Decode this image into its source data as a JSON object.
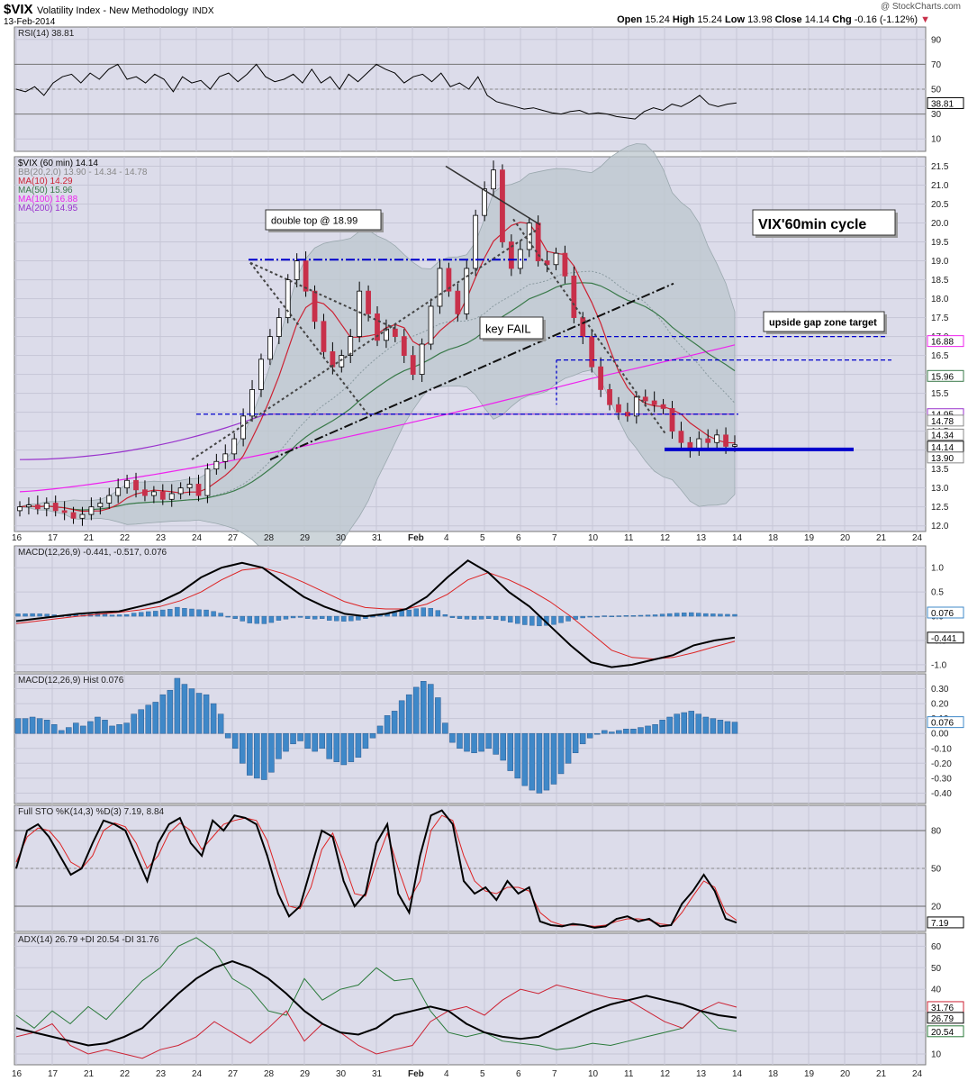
{
  "header": {
    "symbol": "$VIX",
    "name": "Volatility Index - New Methodology",
    "exchange": "INDX",
    "date": "13-Feb-2014",
    "watermark": "@ StockCharts.com",
    "ohlc": {
      "open": "15.24",
      "high": "15.24",
      "low": "13.98",
      "close": "14.14",
      "chg": "-0.16 (-1.12%)"
    }
  },
  "x_axis_labels": [
    "16",
    "17",
    "21",
    "22",
    "23",
    "24",
    "27",
    "28",
    "29",
    "30",
    "31",
    "Feb",
    "4",
    "5",
    "6",
    "7",
    "10",
    "11",
    "12",
    "13",
    "14",
    "18",
    "19",
    "20",
    "21",
    "24"
  ],
  "chart_data": [
    {
      "type": "line",
      "panel": "rsi",
      "legend": "RSI(14) 38.81",
      "yticks": [
        10,
        30,
        50,
        70,
        90
      ],
      "ylim": [
        0,
        100
      ],
      "reference_lines": [
        30,
        50,
        70
      ],
      "last_value": "38.81",
      "values": [
        50,
        48,
        52,
        45,
        55,
        60,
        62,
        55,
        63,
        58,
        66,
        70,
        58,
        60,
        55,
        62,
        58,
        48,
        60,
        55,
        57,
        50,
        60,
        63,
        56,
        62,
        70,
        60,
        56,
        58,
        62,
        55,
        66,
        55,
        60,
        50,
        62,
        56,
        63,
        70,
        66,
        63,
        55,
        60,
        62,
        56,
        63,
        52,
        55,
        50,
        60,
        45,
        40,
        38,
        36,
        34,
        35,
        33,
        31,
        30,
        32,
        33,
        30,
        31,
        30,
        28,
        27,
        26,
        32,
        35,
        33,
        38,
        36,
        40,
        45,
        38,
        36,
        38,
        39
      ]
    },
    {
      "type": "candlestick",
      "panel": "price",
      "legend": [
        "$VIX (60 min) 14.14",
        "BB(20,2.0) 13.90 - 14.34 - 14.78",
        "MA(10) 14.29",
        "MA(50) 15.96",
        "MA(100) 16.88",
        "MA(200) 14.95"
      ],
      "legend_colors": [
        "#000000",
        "#888888",
        "#cc2233",
        "#3a7a4a",
        "#ee22ee",
        "#9933cc"
      ],
      "yticks": [
        12.0,
        12.5,
        13.0,
        13.5,
        14.0,
        14.5,
        15.0,
        15.5,
        16.0,
        16.5,
        17.0,
        17.5,
        18.0,
        18.5,
        19.0,
        19.5,
        20.0,
        20.5,
        21.0,
        21.5
      ],
      "ylim": [
        11.85,
        21.75
      ],
      "y_markers": [
        {
          "value": 16.88,
          "label": "16.88",
          "color": "#ee22ee"
        },
        {
          "value": 15.96,
          "label": "15.96",
          "color": "#3a7a4a"
        },
        {
          "value": 14.95,
          "label": "14.95",
          "color": "#9933cc"
        },
        {
          "value": 14.78,
          "label": "14.78",
          "color": "#888888"
        },
        {
          "value": 14.34,
          "label": "14.34",
          "color": "#888888"
        },
        {
          "value": 14.14,
          "label": "14.14",
          "color": "#000000"
        },
        {
          "value": 13.9,
          "label": "13.90",
          "color": "#888888"
        }
      ],
      "close": [
        12.5,
        12.55,
        12.45,
        12.6,
        12.4,
        12.35,
        12.2,
        12.3,
        12.5,
        12.6,
        12.8,
        13.0,
        13.2,
        12.95,
        12.8,
        12.9,
        12.7,
        12.85,
        13.0,
        13.1,
        12.8,
        13.5,
        13.7,
        13.9,
        14.3,
        14.9,
        15.6,
        16.4,
        17.0,
        17.5,
        18.5,
        19.0,
        18.2,
        17.4,
        16.6,
        16.2,
        16.5,
        17.0,
        18.2,
        17.6,
        16.9,
        17.2,
        17.0,
        16.5,
        16.0,
        16.8,
        17.8,
        18.8,
        18.2,
        17.6,
        18.8,
        20.2,
        20.9,
        21.4,
        19.5,
        18.8,
        19.3,
        20.0,
        19.0,
        18.9,
        19.2,
        18.6,
        17.5,
        17.0,
        16.2,
        15.6,
        15.2,
        15.0,
        14.9,
        15.4,
        15.3,
        15.2,
        15.1,
        14.5,
        14.2,
        14.0,
        14.3,
        14.2,
        14.4,
        14.1,
        14.14
      ]
    },
    {
      "type": "line",
      "panel": "macd",
      "legend": "MACD(12,26,9) -0.441, -0.517, 0.076",
      "yticks": [
        -1.0,
        -0.5,
        0.0,
        0.5,
        1.0
      ],
      "ylim": [
        -1.15,
        1.45
      ],
      "series": [
        {
          "name": "MACD",
          "values": [
            -0.1,
            -0.05,
            0.0,
            0.05,
            0.08,
            0.1,
            0.2,
            0.3,
            0.5,
            0.8,
            1.0,
            1.1,
            1.0,
            0.7,
            0.4,
            0.2,
            0.05,
            0.0,
            0.05,
            0.15,
            0.4,
            0.8,
            1.15,
            0.9,
            0.5,
            0.2,
            -0.2,
            -0.6,
            -0.95,
            -1.05,
            -1.0,
            -0.9,
            -0.8,
            -0.6,
            -0.5,
            -0.441
          ]
        },
        {
          "name": "Signal",
          "values": [
            -0.15,
            -0.1,
            -0.05,
            0.0,
            0.04,
            0.08,
            0.13,
            0.2,
            0.32,
            0.5,
            0.75,
            0.95,
            1.0,
            0.88,
            0.7,
            0.5,
            0.3,
            0.18,
            0.15,
            0.15,
            0.25,
            0.45,
            0.75,
            0.9,
            0.75,
            0.55,
            0.3,
            0.0,
            -0.35,
            -0.7,
            -0.85,
            -0.88,
            -0.85,
            -0.75,
            -0.63,
            -0.517
          ]
        }
      ],
      "last_values": [
        "0.076",
        "-0.441"
      ]
    },
    {
      "type": "bar",
      "panel": "macd_hist",
      "legend": "MACD(12,26,9) Hist 0.076",
      "yticks": [
        -0.4,
        -0.3,
        -0.2,
        -0.1,
        0.0,
        0.1,
        0.2,
        0.3
      ],
      "ylim": [
        -0.47,
        0.4
      ],
      "values": [
        0.1,
        0.1,
        0.11,
        0.1,
        0.09,
        0.06,
        0.02,
        0.04,
        0.07,
        0.05,
        0.08,
        0.11,
        0.09,
        0.05,
        0.06,
        0.07,
        0.13,
        0.16,
        0.19,
        0.21,
        0.26,
        0.29,
        0.37,
        0.33,
        0.3,
        0.27,
        0.26,
        0.2,
        0.13,
        -0.03,
        -0.1,
        -0.2,
        -0.28,
        -0.3,
        -0.31,
        -0.26,
        -0.17,
        -0.12,
        -0.07,
        -0.05,
        -0.1,
        -0.12,
        -0.1,
        -0.17,
        -0.19,
        -0.21,
        -0.19,
        -0.16,
        -0.1,
        -0.03,
        0.05,
        0.12,
        0.15,
        0.22,
        0.26,
        0.31,
        0.35,
        0.33,
        0.24,
        0.07,
        -0.06,
        -0.1,
        -0.12,
        -0.13,
        -0.12,
        -0.1,
        -0.14,
        -0.18,
        -0.25,
        -0.3,
        -0.35,
        -0.38,
        -0.4,
        -0.38,
        -0.34,
        -0.27,
        -0.2,
        -0.13,
        -0.07,
        -0.03,
        0.0,
        0.02,
        0.01,
        0.02,
        0.03,
        0.03,
        0.04,
        0.05,
        0.06,
        0.09,
        0.11,
        0.13,
        0.14,
        0.15,
        0.13,
        0.11,
        0.1,
        0.09,
        0.08,
        0.076
      ]
    },
    {
      "type": "line",
      "panel": "stochastic",
      "legend": "Full STO %K(14,3) %D(3) 7.19, 8.84",
      "yticks": [
        20,
        50,
        80
      ],
      "ylim": [
        0,
        100
      ],
      "reference_lines": [
        20,
        50,
        80
      ],
      "last_value": "7.19",
      "series": [
        {
          "name": "%K",
          "values": [
            50,
            80,
            85,
            75,
            60,
            45,
            50,
            70,
            88,
            85,
            80,
            60,
            40,
            70,
            85,
            90,
            70,
            60,
            88,
            80,
            92,
            90,
            85,
            60,
            30,
            12,
            20,
            50,
            80,
            75,
            40,
            20,
            30,
            70,
            85,
            30,
            15,
            60,
            92,
            96,
            85,
            40,
            30,
            35,
            25,
            40,
            30,
            35,
            8,
            5,
            4,
            6,
            5,
            3,
            4,
            10,
            12,
            8,
            10,
            4,
            5,
            22,
            32,
            45,
            32,
            10,
            7
          ]
        },
        {
          "name": "%D",
          "values": [
            55,
            75,
            82,
            80,
            70,
            55,
            50,
            60,
            80,
            86,
            83,
            70,
            50,
            60,
            78,
            86,
            80,
            65,
            75,
            85,
            88,
            90,
            88,
            72,
            45,
            20,
            18,
            35,
            65,
            78,
            55,
            30,
            28,
            55,
            78,
            50,
            25,
            40,
            80,
            92,
            88,
            60,
            40,
            32,
            30,
            35,
            35,
            32,
            15,
            8,
            5,
            5,
            5,
            4,
            5,
            8,
            10,
            10,
            9,
            6,
            5,
            15,
            28,
            40,
            35,
            15,
            8.84
          ]
        }
      ]
    },
    {
      "type": "line",
      "panel": "adx",
      "legend": "ADX(14) 26.79 +DI 20.54 -DI 31.76",
      "yticks": [
        10,
        20,
        30,
        40,
        50,
        60
      ],
      "ylim": [
        5,
        66
      ],
      "series": [
        {
          "name": "ADX",
          "values": [
            22,
            20,
            18,
            16,
            14,
            15,
            18,
            22,
            30,
            38,
            45,
            50,
            53,
            50,
            45,
            38,
            30,
            24,
            20,
            19,
            22,
            28,
            30,
            32,
            30,
            24,
            20,
            18,
            17,
            18,
            22,
            26,
            30,
            33,
            35,
            37,
            35,
            33,
            30,
            28,
            26.79
          ]
        },
        {
          "name": "+DI",
          "values": [
            28,
            22,
            30,
            24,
            32,
            26,
            35,
            44,
            50,
            60,
            64,
            58,
            45,
            40,
            30,
            28,
            45,
            35,
            40,
            42,
            50,
            44,
            45,
            30,
            20,
            18,
            20,
            16,
            15,
            14,
            12,
            13,
            15,
            14,
            16,
            18,
            20,
            22,
            30,
            22,
            20.54
          ]
        },
        {
          "name": "-DI",
          "values": [
            18,
            20,
            24,
            14,
            10,
            12,
            10,
            8,
            12,
            14,
            18,
            25,
            20,
            15,
            22,
            30,
            16,
            24,
            20,
            14,
            10,
            12,
            14,
            25,
            30,
            32,
            28,
            35,
            40,
            38,
            42,
            40,
            38,
            36,
            35,
            30,
            25,
            22,
            30,
            34,
            31.76
          ]
        }
      ],
      "last_values": [
        "31.76",
        "26.79",
        "20.54"
      ]
    }
  ],
  "annotations": {
    "double_top": "double top @ 18.99",
    "key_fail": "key FAIL",
    "cycle_title": "VIX'60min cycle",
    "gap_zone": "upside gap zone target"
  },
  "colors": {
    "panel_bg": "#dcdcea",
    "band_fill": "#bcc7cd",
    "up": "#ffffff",
    "down": "#c8304a",
    "macd_hist": "#3f88c8",
    "blue_line": "#0000cc",
    "ma10": "#cc2233",
    "ma50": "#3a7a4a",
    "ma100": "#ee22ee",
    "ma200": "#9933cc"
  }
}
